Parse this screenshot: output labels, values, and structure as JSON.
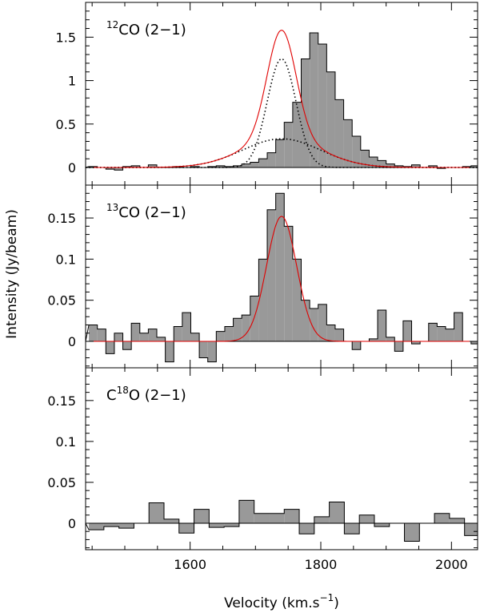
{
  "chart_data": {
    "type": "histogram",
    "xlabel": "Velocity (km.s",
    "xlabel_superscript": "−1",
    "xlabel_close": ")",
    "ylabel": "Intensity (Jy/beam)",
    "xlim": [
      1440,
      2040
    ],
    "xticks": [
      1600,
      1800,
      2000
    ],
    "bin_start": 1445,
    "bin_width": 13,
    "panels": [
      {
        "label_sup": "12",
        "label_main": "CO (2−1)",
        "ylim": [
          -0.05,
          1.9
        ],
        "yticks": [
          0,
          0.5,
          1,
          1.5
        ],
        "ytick_labels": [
          "0",
          "0.5",
          "1",
          "1.5"
        ],
        "values": [
          0.01,
          0.0,
          -0.02,
          -0.03,
          0.01,
          0.02,
          0.0,
          0.03,
          0.0,
          0.0,
          0.01,
          0.0,
          0.01,
          0.0,
          0.01,
          0.02,
          0.01,
          0.02,
          0.04,
          0.06,
          0.1,
          0.17,
          0.32,
          0.52,
          0.75,
          1.25,
          1.55,
          1.42,
          1.1,
          0.78,
          0.55,
          0.36,
          0.2,
          0.12,
          0.08,
          0.04,
          0.02,
          0.01,
          0.03,
          0.0,
          0.02,
          -0.01,
          0.0,
          0.0,
          0.01,
          0.02,
          0.0,
          0.04,
          0.02,
          0.01
        ],
        "fit_total": {
          "components": [
            {
              "amplitude": 1.25,
              "center": 1740,
              "sigma": 22
            },
            {
              "amplitude": 0.33,
              "center": 1740,
              "sigma": 60
            }
          ]
        },
        "show_components": true
      },
      {
        "label_sup": "13",
        "label_main": "CO (2−1)",
        "ylim": [
          -0.03,
          0.19
        ],
        "yticks": [
          0,
          0.05,
          0.1,
          0.15
        ],
        "ytick_labels": [
          "0",
          "0.05",
          "0.1",
          "0.15"
        ],
        "values": [
          0.02,
          0.015,
          -0.015,
          0.01,
          -0.01,
          0.022,
          0.01,
          0.015,
          0.005,
          -0.025,
          0.018,
          0.035,
          0.01,
          -0.02,
          -0.025,
          0.012,
          0.018,
          0.028,
          0.032,
          0.055,
          0.1,
          0.16,
          0.18,
          0.14,
          0.1,
          0.05,
          0.04,
          0.045,
          0.02,
          0.015,
          0.0,
          -0.01,
          0.0,
          0.003,
          0.038,
          0.005,
          -0.012,
          0.025,
          -0.003,
          0.0,
          0.022,
          0.018,
          0.015,
          0.035,
          0.0,
          -0.003,
          0.0,
          0.002,
          0.0,
          0.0
        ],
        "fit_total": {
          "components": [
            {
              "amplitude": 0.152,
              "center": 1740,
              "sigma": 23
            }
          ]
        },
        "show_components": false
      },
      {
        "label_sup": "18",
        "label_prefix": "C",
        "label_main": "O (2−1)",
        "ylim": [
          -0.03,
          0.19
        ],
        "yticks": [
          0,
          0.05,
          0.1,
          0.15
        ],
        "ytick_labels": [
          "0",
          "0.05",
          "0.1",
          "0.15"
        ],
        "values": [
          -0.008,
          -0.004,
          -0.006,
          0.0,
          0.025,
          0.005,
          -0.012,
          0.017,
          -0.005,
          -0.004,
          0.028,
          0.012,
          0.012,
          0.017,
          -0.013,
          0.008,
          0.026,
          -0.013,
          0.01,
          -0.004,
          0.0,
          -0.022,
          0.0,
          0.012,
          0.006,
          -0.015
        ],
        "bin_width_override": 23,
        "fit_total": null,
        "show_components": false
      }
    ]
  }
}
